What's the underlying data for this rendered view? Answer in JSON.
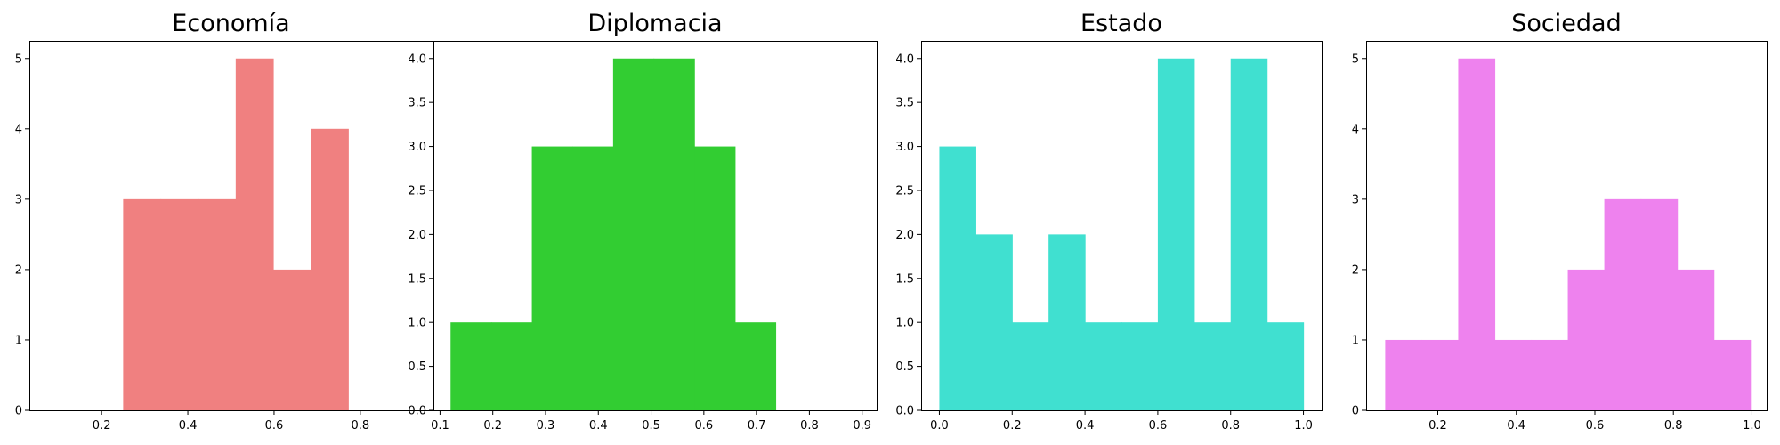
{
  "chart_data": [
    {
      "type": "bar",
      "title": "Economía",
      "color": "#f08080",
      "xlim": [
        0.0325,
        0.9675
      ],
      "ylim": [
        0,
        5.25
      ],
      "xticks": [
        0.2,
        0.4,
        0.6,
        0.8
      ],
      "xtick_labels": [
        "0.2",
        "0.4",
        "0.6",
        "0.8"
      ],
      "yticks": [
        0,
        1,
        2,
        3,
        4,
        5
      ],
      "ytick_labels": [
        "0",
        "1",
        "2",
        "3",
        "4",
        "5"
      ],
      "bins": [
        {
          "x0": 0.25,
          "x1": 0.337,
          "value": 3
        },
        {
          "x0": 0.337,
          "x1": 0.424,
          "value": 3
        },
        {
          "x0": 0.424,
          "x1": 0.511,
          "value": 3
        },
        {
          "x0": 0.511,
          "x1": 0.598,
          "value": 5
        },
        {
          "x0": 0.598,
          "x1": 0.685,
          "value": 2
        },
        {
          "x0": 0.685,
          "x1": 0.772,
          "value": 4
        }
      ]
    },
    {
      "type": "bar",
      "title": "Diplomacia",
      "color": "#32cd32",
      "xlim": [
        0.0875,
        0.9275
      ],
      "ylim": [
        0,
        4.2
      ],
      "xticks": [
        0.1,
        0.2,
        0.3,
        0.4,
        0.5,
        0.6,
        0.7,
        0.8,
        0.9
      ],
      "xtick_labels": [
        "0.1",
        "0.2",
        "0.3",
        "0.4",
        "0.5",
        "0.6",
        "0.7",
        "0.8",
        "0.9"
      ],
      "yticks": [
        0,
        0.5,
        1,
        1.5,
        2,
        2.5,
        3,
        3.5,
        4
      ],
      "ytick_labels": [
        "0.0",
        "0.5",
        "1.0",
        "1.5",
        "2.0",
        "2.5",
        "3.0",
        "3.5",
        "4.0"
      ],
      "bins": [
        {
          "x0": 0.12,
          "x1": 0.197,
          "value": 1
        },
        {
          "x0": 0.197,
          "x1": 0.274,
          "value": 1
        },
        {
          "x0": 0.274,
          "x1": 0.351,
          "value": 3
        },
        {
          "x0": 0.351,
          "x1": 0.428,
          "value": 3
        },
        {
          "x0": 0.428,
          "x1": 0.505,
          "value": 4
        },
        {
          "x0": 0.505,
          "x1": 0.582,
          "value": 4
        },
        {
          "x0": 0.582,
          "x1": 0.659,
          "value": 3
        },
        {
          "x0": 0.659,
          "x1": 0.736,
          "value": 1
        }
      ]
    },
    {
      "type": "bar",
      "title": "Estado",
      "color": "#40e0d0",
      "xlim": [
        -0.05,
        1.05
      ],
      "ylim": [
        0,
        4.2
      ],
      "xticks": [
        0,
        0.2,
        0.4,
        0.6,
        0.8,
        1.0
      ],
      "xtick_labels": [
        "0.0",
        "0.2",
        "0.4",
        "0.6",
        "0.8",
        "1.0"
      ],
      "yticks": [
        0,
        0.5,
        1,
        1.5,
        2,
        2.5,
        3,
        3.5,
        4
      ],
      "ytick_labels": [
        "0.0",
        "0.5",
        "1.0",
        "1.5",
        "2.0",
        "2.5",
        "3.0",
        "3.5",
        "4.0"
      ],
      "bins": [
        {
          "x0": 0.0,
          "x1": 0.1,
          "value": 3
        },
        {
          "x0": 0.1,
          "x1": 0.2,
          "value": 2
        },
        {
          "x0": 0.2,
          "x1": 0.3,
          "value": 1
        },
        {
          "x0": 0.3,
          "x1": 0.4,
          "value": 2
        },
        {
          "x0": 0.4,
          "x1": 0.5,
          "value": 1
        },
        {
          "x0": 0.5,
          "x1": 0.6,
          "value": 1
        },
        {
          "x0": 0.6,
          "x1": 0.7,
          "value": 4
        },
        {
          "x0": 0.7,
          "x1": 0.8,
          "value": 1
        },
        {
          "x0": 0.8,
          "x1": 0.9,
          "value": 4
        },
        {
          "x0": 0.9,
          "x1": 1.0,
          "value": 1
        }
      ]
    },
    {
      "type": "bar",
      "title": "Sociedad",
      "color": "#ee82ee",
      "xlim": [
        0.0175,
        1.0375
      ],
      "ylim": [
        0,
        5.25
      ],
      "xticks": [
        0.2,
        0.4,
        0.6,
        0.8,
        1.0
      ],
      "xtick_labels": [
        "0.2",
        "0.4",
        "0.6",
        "0.8",
        "1.0"
      ],
      "yticks": [
        0,
        1,
        2,
        3,
        4,
        5
      ],
      "ytick_labels": [
        "0",
        "1",
        "2",
        "3",
        "4",
        "5"
      ],
      "bins": [
        {
          "x0": 0.066,
          "x1": 0.159,
          "value": 1
        },
        {
          "x0": 0.159,
          "x1": 0.252,
          "value": 1
        },
        {
          "x0": 0.252,
          "x1": 0.345,
          "value": 5
        },
        {
          "x0": 0.345,
          "x1": 0.438,
          "value": 1
        },
        {
          "x0": 0.438,
          "x1": 0.531,
          "value": 1
        },
        {
          "x0": 0.531,
          "x1": 0.624,
          "value": 2
        },
        {
          "x0": 0.624,
          "x1": 0.717,
          "value": 3
        },
        {
          "x0": 0.717,
          "x1": 0.81,
          "value": 3
        },
        {
          "x0": 0.81,
          "x1": 0.903,
          "value": 2
        },
        {
          "x0": 0.903,
          "x1": 0.996,
          "value": 1
        }
      ]
    }
  ]
}
